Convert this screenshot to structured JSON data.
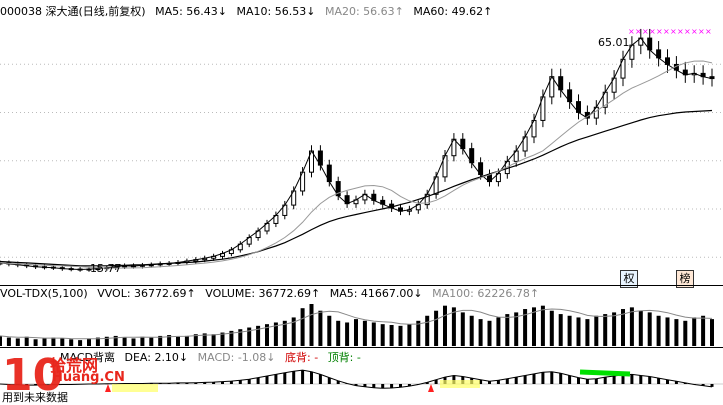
{
  "price_header": {
    "code_title": "000038 深大通(日线,前复权)",
    "ma5": "MA5: 56.43↓",
    "ma10": "MA10: 56.53↓",
    "ma20": "MA20: 56.63↑",
    "ma60": "MA60: 49.62↑"
  },
  "price_labels": {
    "high": "65.01",
    "low": "15.77",
    "badge1": "权",
    "badge2": "榜"
  },
  "vol_header": {
    "name": "VOL-TDX(5,100)",
    "vvol": "VVOL: 36772.69↑",
    "volume": "VOLUME: 36772.69↑",
    "ma5": "MA5: 41667.00↓",
    "ma100": "MA100: 62226.78↑"
  },
  "macd_header": {
    "name": "MACD背离",
    "dea": "DEA: 2.10↓",
    "macd": "MACD: -1.08↓",
    "bottom": "底背: -",
    "top": "顶背: -"
  },
  "watermark": {
    "num": "10",
    "brand": "拾荒网",
    "domain": "Huang.CN"
  },
  "footnote": "用到未来数据",
  "colors": {
    "up": "#000000",
    "ma5": "#000000",
    "ma60": "#000000",
    "accent_red": "#d00000",
    "accent_green": "#00c000",
    "marker_magenta": "#ff00ff"
  },
  "chart_data": {
    "type": "line",
    "title": "000038 深大通(日线,前复权)",
    "close": [
      17.2,
      17.0,
      16.8,
      16.6,
      16.4,
      16.3,
      16.2,
      16.0,
      15.9,
      15.8,
      15.9,
      16.0,
      16.2,
      16.4,
      16.6,
      16.5,
      16.7,
      16.8,
      17.0,
      17.1,
      17.3,
      17.6,
      17.9,
      18.2,
      18.6,
      19.2,
      20.0,
      21.2,
      22.6,
      24.0,
      25.6,
      27.3,
      29.5,
      32.5,
      36.5,
      41.0,
      38.0,
      34.5,
      31.5,
      29.8,
      30.6,
      31.8,
      30.5,
      29.7,
      28.9,
      28.2,
      28.5,
      29.6,
      31.8,
      35.5,
      40.0,
      43.5,
      41.5,
      38.5,
      36.0,
      34.5,
      36.2,
      38.8,
      41.0,
      44.0,
      47.5,
      52.5,
      56.8,
      54.0,
      51.5,
      49.2,
      48.0,
      50.3,
      53.5,
      56.5,
      60.5,
      63.5,
      65.0,
      62.5,
      60.8,
      59.4,
      58.2,
      57.2,
      57.5,
      56.8,
      56.4
    ],
    "ma60": [
      17.5,
      17.4,
      17.3,
      17.2,
      17.1,
      17.0,
      16.9,
      16.8,
      16.7,
      16.6,
      16.6,
      16.6,
      16.6,
      16.7,
      16.7,
      16.8,
      16.8,
      16.9,
      17.0,
      17.1,
      17.2,
      17.3,
      17.4,
      17.6,
      17.8,
      18.0,
      18.3,
      18.7,
      19.1,
      19.6,
      20.2,
      20.8,
      21.5,
      22.4,
      23.3,
      24.3,
      25.2,
      26.0,
      26.6,
      27.1,
      27.5,
      27.9,
      28.3,
      28.7,
      29.1,
      29.6,
      30.1,
      30.7,
      31.3,
      32.0,
      32.7,
      33.5,
      34.2,
      34.9,
      35.5,
      36.1,
      36.7,
      37.3,
      37.9,
      38.6,
      39.3,
      40.1,
      41.0,
      41.9,
      42.7,
      43.4,
      44.0,
      44.6,
      45.2,
      45.8,
      46.4,
      47.0,
      47.6,
      48.1,
      48.5,
      48.8,
      49.1,
      49.3,
      49.4,
      49.5,
      49.6
    ],
    "volume": [
      12,
      10,
      9,
      11,
      8,
      9,
      10,
      9,
      8,
      7,
      9,
      10,
      11,
      12,
      10,
      9,
      11,
      10,
      12,
      13,
      11,
      12,
      14,
      15,
      14,
      16,
      18,
      20,
      22,
      24,
      26,
      28,
      30,
      34,
      45,
      50,
      42,
      36,
      30,
      28,
      32,
      30,
      28,
      26,
      25,
      24,
      26,
      30,
      36,
      42,
      48,
      46,
      40,
      36,
      32,
      30,
      34,
      38,
      40,
      44,
      46,
      48,
      42,
      38,
      36,
      34,
      32,
      36,
      38,
      40,
      44,
      46,
      42,
      40,
      36,
      34,
      32,
      30,
      34,
      36,
      32
    ],
    "macd": [
      0,
      -0.2,
      -0.3,
      -0.4,
      -0.4,
      -0.3,
      -0.3,
      -0.2,
      -0.2,
      -0.1,
      0,
      0,
      0.1,
      0.1,
      0.2,
      0.2,
      0.2,
      0.3,
      0.3,
      0.3,
      0.4,
      0.4,
      0.5,
      0.6,
      0.7,
      0.9,
      1.1,
      1.4,
      1.8,
      2.4,
      3.0,
      3.6,
      4.2,
      4.8,
      5.2,
      4.6,
      3.6,
      2.4,
      1.2,
      0.2,
      -0.6,
      -1.0,
      -1.4,
      -1.6,
      -1.5,
      -1.2,
      -0.8,
      -0.2,
      0.6,
      1.6,
      2.6,
      3.2,
      2.8,
      2.2,
      1.6,
      1.0,
      1.4,
      2.0,
      2.6,
      3.2,
      3.8,
      4.4,
      4.6,
      4.0,
      3.2,
      2.4,
      1.8,
      2.0,
      2.6,
      3.0,
      3.4,
      3.6,
      3.2,
      2.8,
      2.2,
      1.6,
      1.0,
      0.4,
      -0.2,
      -0.6,
      -1.08
    ],
    "ylim": [
      14,
      68
    ]
  }
}
